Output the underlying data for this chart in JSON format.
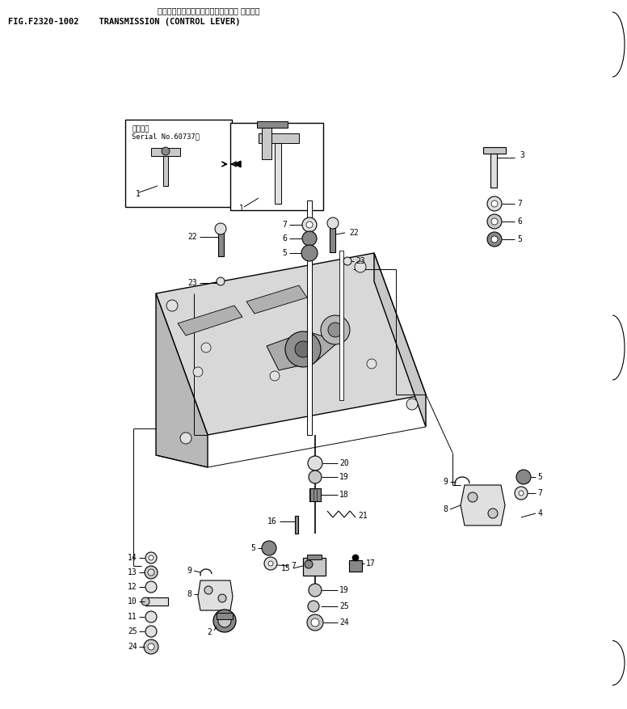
{
  "bg_color": "#ffffff",
  "fig_width": 7.76,
  "fig_height": 8.77,
  "dpi": 100,
  "title_jp": "トランスミッション　（コントロール レバー）",
  "title_en": "FIG.F2320-1002    TRANSMISSION (CONTROL LEVER)",
  "inset_label": "適用号機",
  "serial_label": "Serial No.60737～"
}
